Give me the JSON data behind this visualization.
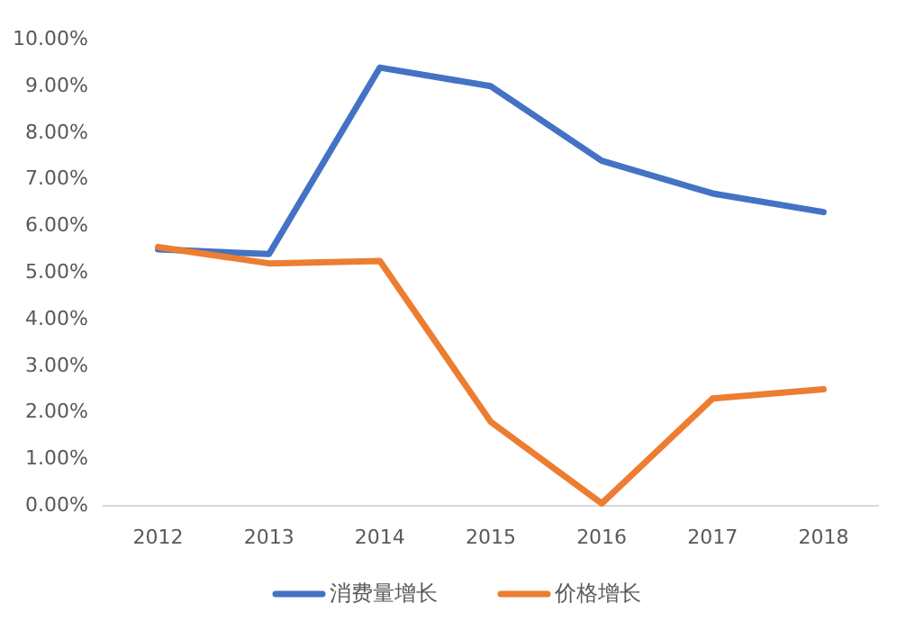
{
  "chart_data": {
    "type": "line",
    "categories": [
      "2012",
      "2013",
      "2014",
      "2015",
      "2016",
      "2017",
      "2018"
    ],
    "series": [
      {
        "name": "消费量增长",
        "color": "#4472c4",
        "values": [
          5.5,
          5.4,
          9.4,
          9.0,
          7.4,
          6.7,
          6.3
        ]
      },
      {
        "name": "价格增长",
        "color": "#ed7d31",
        "values": [
          5.55,
          5.2,
          5.25,
          1.8,
          0.05,
          2.3,
          2.5
        ]
      }
    ],
    "ylim": [
      0,
      10
    ],
    "yticks": [
      {
        "value": 0,
        "label": "0.00%"
      },
      {
        "value": 1,
        "label": "1.00%"
      },
      {
        "value": 2,
        "label": "2.00%"
      },
      {
        "value": 3,
        "label": "3.00%"
      },
      {
        "value": 4,
        "label": "4.00%"
      },
      {
        "value": 5,
        "label": "5.00%"
      },
      {
        "value": 6,
        "label": "6.00%"
      },
      {
        "value": 7,
        "label": "7.00%"
      },
      {
        "value": 8,
        "label": "8.00%"
      },
      {
        "value": 9,
        "label": "9.00%"
      },
      {
        "value": 10,
        "label": "10.00%"
      }
    ],
    "legend": "bottom",
    "marker": "none",
    "line_style": "solid",
    "grid": false
  }
}
